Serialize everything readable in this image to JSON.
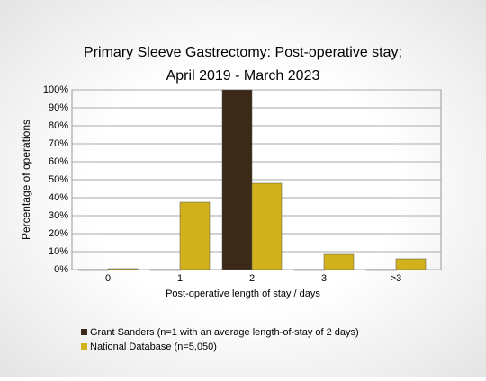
{
  "chart_data": {
    "type": "bar",
    "title": [
      "Primary Sleeve Gastrectomy: Post-operative stay;",
      "April 2019 - March 2023"
    ],
    "x_label": "Post-operative length of stay / days",
    "y_label": "Percentage of operations",
    "categories": [
      "0",
      "1",
      "2",
      "3",
      ">3"
    ],
    "series": [
      {
        "name": "Grant Sanders (n=1 with an average length-of-stay of 2 days)",
        "color": "#3b2a17",
        "values": [
          0,
          0,
          100,
          0,
          0
        ]
      },
      {
        "name": "National Database (n=5,050)",
        "color": "#d2b21c",
        "values": [
          0.5,
          37.5,
          48,
          8.5,
          6
        ]
      }
    ],
    "ylim": [
      0,
      100
    ],
    "yticks": [
      {
        "value": 0,
        "label": "0%"
      },
      {
        "value": 10,
        "label": "10%"
      },
      {
        "value": 20,
        "label": "20%"
      },
      {
        "value": 30,
        "label": "30%"
      },
      {
        "value": 40,
        "label": "40%"
      },
      {
        "value": 50,
        "label": "50%"
      },
      {
        "value": 60,
        "label": "60%"
      },
      {
        "value": 70,
        "label": "70%"
      },
      {
        "value": 80,
        "label": "80%"
      },
      {
        "value": 90,
        "label": "90%"
      },
      {
        "value": 100,
        "label": "100%"
      }
    ],
    "grid": true
  }
}
